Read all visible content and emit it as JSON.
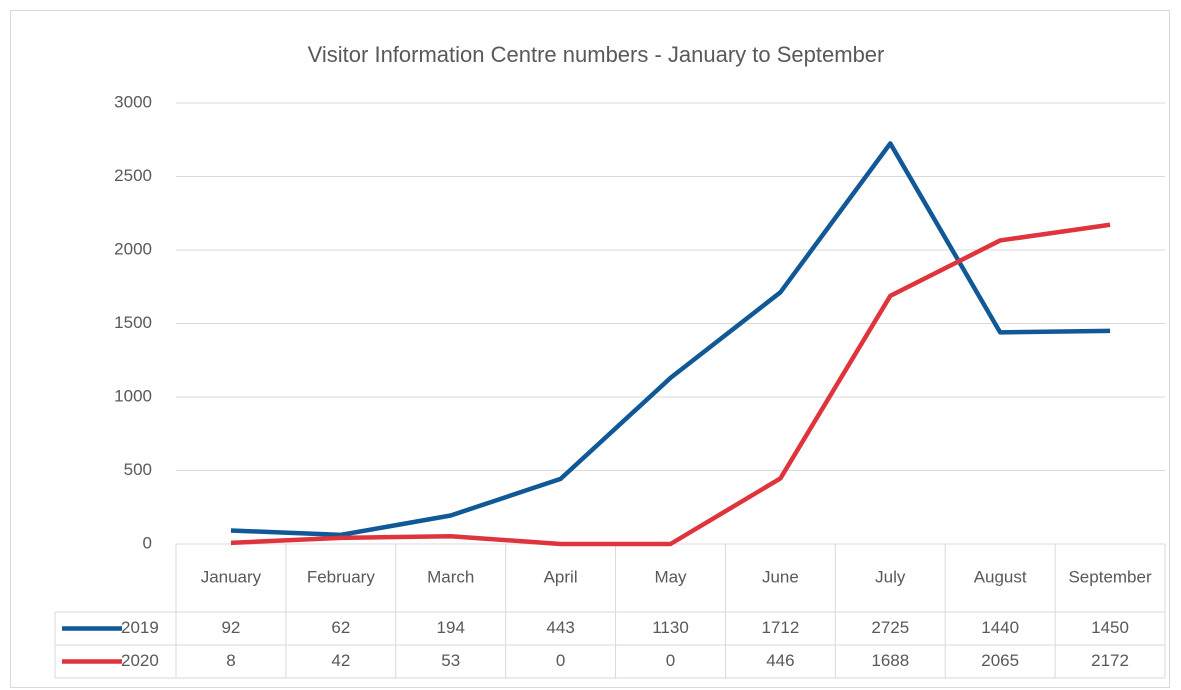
{
  "chart_data": {
    "type": "line",
    "title": "Visitor Information Centre numbers - January to September",
    "categories": [
      "January",
      "February",
      "March",
      "April",
      "May",
      "June",
      "July",
      "August",
      "September"
    ],
    "series": [
      {
        "name": "2019",
        "color": "#115896",
        "values": [
          92,
          62,
          194,
          443,
          1130,
          1712,
          2725,
          1440,
          1450
        ]
      },
      {
        "name": "2020",
        "color": "#e0343d",
        "values": [
          8,
          42,
          53,
          0,
          0,
          446,
          1688,
          2065,
          2172
        ]
      }
    ],
    "ylim": [
      0,
      3000
    ],
    "yticks": [
      0,
      500,
      1000,
      1500,
      2000,
      2500,
      3000
    ],
    "grid": true
  }
}
